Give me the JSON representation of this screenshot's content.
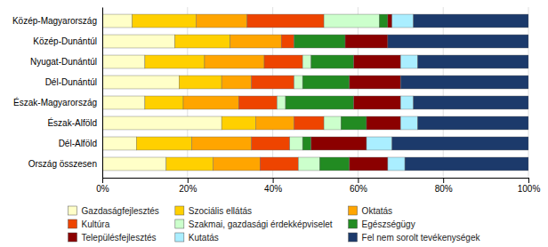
{
  "chart_data": {
    "type": "bar",
    "orientation": "horizontal",
    "stacked": true,
    "categories": [
      "Közép-Magyarország",
      "Közép-Dunántúl",
      "Nyugat-Dunántúl",
      "Dél-Dunántúl",
      "Észak-Magyarország",
      "Észak-Alföld",
      "Dél-Alföld",
      "Ország összesen"
    ],
    "series": [
      {
        "name": "Gazdaságfejlesztés",
        "color": "#FFFFC8",
        "values": [
          7,
          17,
          10,
          18,
          10,
          28,
          8,
          15
        ]
      },
      {
        "name": "Szociális ellátás",
        "color": "#FFD000",
        "values": [
          15,
          13,
          14,
          10,
          9,
          8,
          13,
          11
        ]
      },
      {
        "name": "Oktatás",
        "color": "#FFA500",
        "values": [
          12,
          12,
          14,
          7,
          13,
          9,
          14,
          11
        ]
      },
      {
        "name": "Kultúra",
        "color": "#EE4400",
        "values": [
          18,
          3,
          9,
          10,
          9,
          7,
          9,
          9
        ]
      },
      {
        "name": "Szakmai, gazdasági érdekképviselet",
        "color": "#CCFFCC",
        "values": [
          13,
          0,
          2,
          2,
          2,
          4,
          3,
          5
        ]
      },
      {
        "name": "Egészségügy",
        "color": "#228B22",
        "values": [
          2,
          12,
          10,
          11,
          16,
          6,
          2,
          7
        ]
      },
      {
        "name": "Településfejlesztés",
        "color": "#8B0000",
        "values": [
          1,
          10,
          11,
          12,
          11,
          8,
          13,
          9
        ]
      },
      {
        "name": "Kutatás",
        "color": "#AAEEFF",
        "values": [
          5,
          0,
          4,
          0,
          3,
          4,
          6,
          4
        ]
      },
      {
        "name": "Fel nem sorolt tevékenységek",
        "color": "#1C3A6B",
        "values": [
          27,
          33,
          26,
          30,
          27,
          26,
          32,
          29
        ]
      }
    ],
    "xlim": [
      0,
      100
    ],
    "xticks": [
      {
        "value": 0,
        "label": "0%"
      },
      {
        "value": 20,
        "label": "20%"
      },
      {
        "value": 40,
        "label": "40%"
      },
      {
        "value": 60,
        "label": "60%"
      },
      {
        "value": 80,
        "label": "80%"
      },
      {
        "value": 100,
        "label": "100%"
      }
    ],
    "grid": true,
    "legend": "bottom"
  }
}
